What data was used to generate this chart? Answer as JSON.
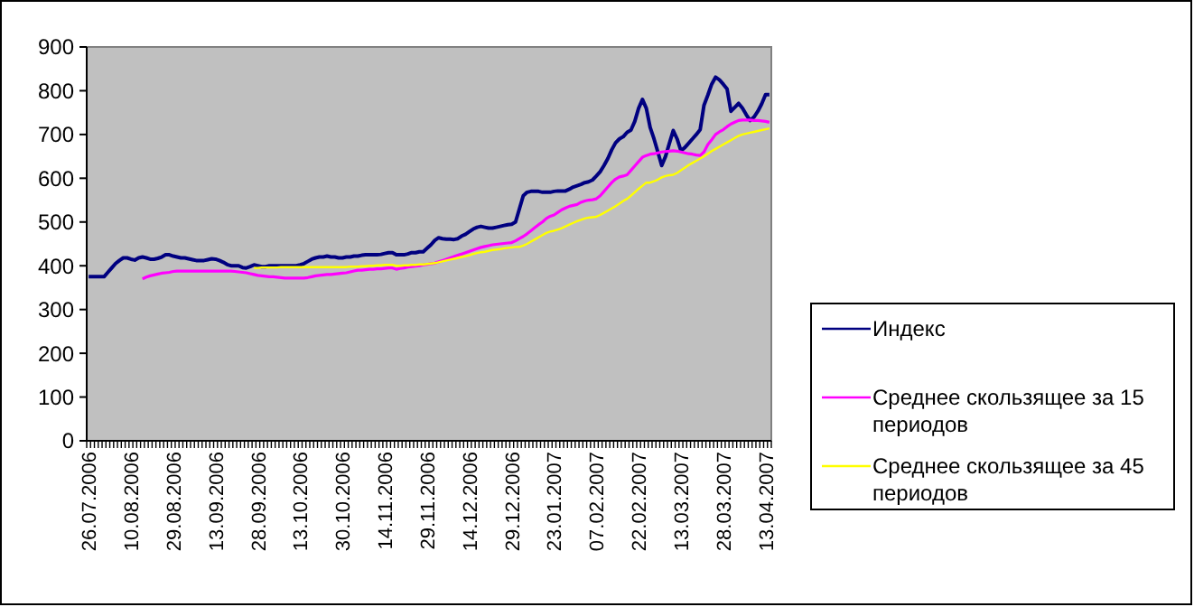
{
  "chart_data": {
    "type": "line",
    "categories": [
      "26.07.2006",
      null,
      null,
      null,
      null,
      null,
      null,
      null,
      null,
      null,
      null,
      "10.08.2006",
      null,
      null,
      null,
      null,
      null,
      null,
      null,
      null,
      null,
      null,
      "29.08.2006",
      null,
      null,
      null,
      null,
      null,
      null,
      null,
      null,
      null,
      null,
      "13.09.2006",
      null,
      null,
      null,
      null,
      null,
      null,
      null,
      null,
      null,
      null,
      "28.09.2006",
      null,
      null,
      null,
      null,
      null,
      null,
      null,
      null,
      null,
      null,
      "13.10.2006",
      null,
      null,
      null,
      null,
      null,
      null,
      null,
      null,
      null,
      null,
      "30.10.2006",
      null,
      null,
      null,
      null,
      null,
      null,
      null,
      null,
      null,
      null,
      "14.11.2006",
      null,
      null,
      null,
      null,
      null,
      null,
      null,
      null,
      null,
      null,
      "29.11.2006",
      null,
      null,
      null,
      null,
      null,
      null,
      null,
      null,
      null,
      null,
      "14.12.2006",
      null,
      null,
      null,
      null,
      null,
      null,
      null,
      null,
      null,
      null,
      "29.12.2006",
      null,
      null,
      null,
      null,
      null,
      null,
      null,
      null,
      null,
      null,
      "23.01.2007",
      null,
      null,
      null,
      null,
      null,
      null,
      null,
      null,
      null,
      null,
      "07.02.2007",
      null,
      null,
      null,
      null,
      null,
      null,
      null,
      null,
      null,
      null,
      "22.02.2007",
      null,
      null,
      null,
      null,
      null,
      null,
      null,
      null,
      null,
      null,
      "13.03.2007",
      null,
      null,
      null,
      null,
      null,
      null,
      null,
      null,
      null,
      null,
      "28.03.2007",
      null,
      null,
      null,
      null,
      null,
      null,
      null,
      null,
      null,
      null,
      "13.04.2007",
      null
    ],
    "series": [
      {
        "name": "Индекс",
        "color": "#000080",
        "values": [
          375,
          375,
          375,
          375,
          375,
          385,
          395,
          405,
          412,
          418,
          418,
          415,
          413,
          418,
          420,
          418,
          415,
          415,
          417,
          420,
          425,
          425,
          422,
          420,
          418,
          418,
          416,
          414,
          412,
          412,
          412,
          414,
          416,
          415,
          412,
          408,
          403,
          400,
          400,
          400,
          396,
          395,
          398,
          402,
          400,
          398,
          398,
          400,
          400,
          400,
          400,
          400,
          400,
          400,
          400,
          402,
          405,
          410,
          415,
          418,
          420,
          420,
          422,
          420,
          420,
          418,
          418,
          420,
          420,
          422,
          422,
          424,
          425,
          425,
          425,
          425,
          426,
          428,
          430,
          430,
          425,
          425,
          425,
          427,
          430,
          430,
          432,
          432,
          440,
          448,
          458,
          464,
          462,
          461,
          461,
          460,
          462,
          468,
          472,
          478,
          484,
          488,
          490,
          488,
          486,
          486,
          488,
          490,
          492,
          494,
          495,
          500,
          530,
          560,
          568,
          570,
          570,
          570,
          568,
          568,
          568,
          570,
          571,
          571,
          571,
          575,
          580,
          583,
          586,
          590,
          592,
          596,
          605,
          615,
          629,
          645,
          665,
          681,
          690,
          695,
          705,
          710,
          730,
          760,
          780,
          760,
          716,
          690,
          660,
          629,
          650,
          680,
          709,
          690,
          663,
          670,
          680,
          690,
          700,
          711,
          767,
          790,
          815,
          831,
          825,
          815,
          804,
          753,
          762,
          771,
          760,
          745,
          732,
          740,
          753,
          770,
          791,
          791
        ]
      },
      {
        "name": "Среднее скользящее за 15 периодов",
        "color": "#ff00ff",
        "values": [
          null,
          null,
          null,
          null,
          null,
          null,
          null,
          null,
          null,
          null,
          null,
          null,
          null,
          null,
          370,
          374,
          377,
          379,
          381,
          383,
          384,
          385,
          387,
          388,
          388,
          388,
          388,
          388,
          388,
          388,
          388,
          388,
          388,
          388,
          388,
          388,
          388,
          388,
          387,
          386,
          385,
          384,
          382,
          380,
          378,
          377,
          376,
          375,
          375,
          374,
          373,
          372,
          372,
          372,
          372,
          372,
          372,
          373,
          375,
          377,
          378,
          379,
          380,
          380,
          381,
          382,
          383,
          384,
          386,
          388,
          390,
          390,
          391,
          392,
          392,
          393,
          393,
          394,
          395,
          395,
          392,
          394,
          395,
          397,
          398,
          399,
          400,
          402,
          403,
          405,
          406,
          409,
          412,
          415,
          418,
          421,
          424,
          427,
          430,
          433,
          436,
          439,
          442,
          444,
          446,
          448,
          449,
          450,
          451,
          452,
          453,
          457,
          462,
          467,
          473,
          480,
          487,
          494,
          500,
          508,
          513,
          516,
          522,
          528,
          532,
          536,
          538,
          540,
          545,
          548,
          550,
          551,
          553,
          560,
          570,
          580,
          590,
          598,
          603,
          605,
          608,
          618,
          628,
          638,
          648,
          652,
          655,
          656,
          658,
          660,
          661,
          662,
          663,
          662,
          660,
          658,
          656,
          655,
          653,
          652,
          660,
          677,
          688,
          700,
          706,
          711,
          718,
          724,
          728,
          732,
          733,
          733,
          733,
          732,
          732,
          731,
          730,
          728
        ]
      },
      {
        "name": "Среднее скользящее за 45 периодов",
        "color": "#ffff00",
        "values": [
          null,
          null,
          null,
          null,
          null,
          null,
          null,
          null,
          null,
          null,
          null,
          null,
          null,
          null,
          null,
          null,
          null,
          null,
          null,
          null,
          null,
          null,
          null,
          null,
          null,
          null,
          null,
          null,
          null,
          null,
          null,
          null,
          null,
          null,
          null,
          null,
          null,
          null,
          null,
          null,
          null,
          null,
          null,
          395,
          395,
          396,
          396,
          396,
          396,
          396,
          397,
          397,
          397,
          397,
          397,
          397,
          397,
          397,
          397,
          397,
          397,
          397,
          397,
          397,
          397,
          397,
          397,
          397,
          398,
          398,
          398,
          399,
          399,
          400,
          400,
          401,
          401,
          402,
          402,
          402,
          400,
          400,
          401,
          401,
          402,
          402,
          403,
          403,
          404,
          405,
          406,
          408,
          410,
          412,
          414,
          416,
          418,
          420,
          422,
          424,
          427,
          429,
          431,
          432,
          434,
          436,
          437,
          438,
          440,
          441,
          442,
          443,
          443,
          446,
          450,
          455,
          460,
          465,
          470,
          475,
          478,
          480,
          483,
          486,
          490,
          494,
          498,
          502,
          505,
          508,
          510,
          511,
          512,
          516,
          521,
          526,
          531,
          536,
          542,
          548,
          553,
          560,
          568,
          576,
          583,
          590,
          590,
          593,
          597,
          602,
          605,
          607,
          608,
          612,
          618,
          624,
          630,
          635,
          640,
          645,
          650,
          656,
          662,
          667,
          672,
          677,
          682,
          687,
          692,
          697,
          700,
          702,
          704,
          706,
          708,
          710,
          712,
          714
        ]
      }
    ],
    "ylim": [
      0,
      900
    ],
    "yticks": [
      0,
      100,
      200,
      300,
      400,
      500,
      600,
      700,
      800,
      900
    ],
    "grid": false,
    "legend": "right",
    "marker": "none",
    "line_style": "solid"
  }
}
